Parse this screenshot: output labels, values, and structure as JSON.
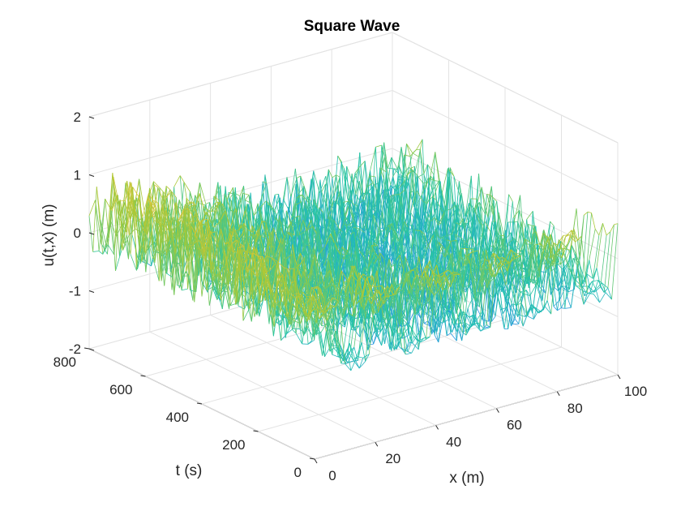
{
  "chart_data": {
    "type": "surface-mesh",
    "title": "Square Wave",
    "xlabel": "x (m)",
    "ylabel": "t (s)",
    "zlabel": "u(t,x) (m)",
    "xlim": [
      0,
      100
    ],
    "ylim": [
      0,
      800
    ],
    "zlim": [
      -2,
      2
    ],
    "x_ticks": [
      0,
      20,
      40,
      60,
      80,
      100
    ],
    "x_tick_labels": [
      "0",
      "20",
      "40",
      "60",
      "80",
      "100"
    ],
    "y_ticks": [
      0,
      200,
      400,
      600,
      800
    ],
    "y_tick_labels": [
      "0",
      "200",
      "400",
      "600",
      "800"
    ],
    "z_ticks": [
      -2,
      -1,
      0,
      1,
      2
    ],
    "z_tick_labels": [
      "-2",
      "-1",
      "0",
      "1",
      "2"
    ],
    "grid": true,
    "colormap": "parula",
    "colormap_stops": [
      "#3e26a8",
      "#2e87f7",
      "#22c5a9",
      "#a6c936",
      "#f5c23a",
      "#f9fb15"
    ],
    "surface": {
      "x_range": [
        0,
        100
      ],
      "t_range": [
        0,
        800
      ],
      "description": "Square wave in x (high on 40–60 / 70–80 style plateaus near t=0) with random noise growing in t; amplitude roughly ±1.8"
    }
  }
}
